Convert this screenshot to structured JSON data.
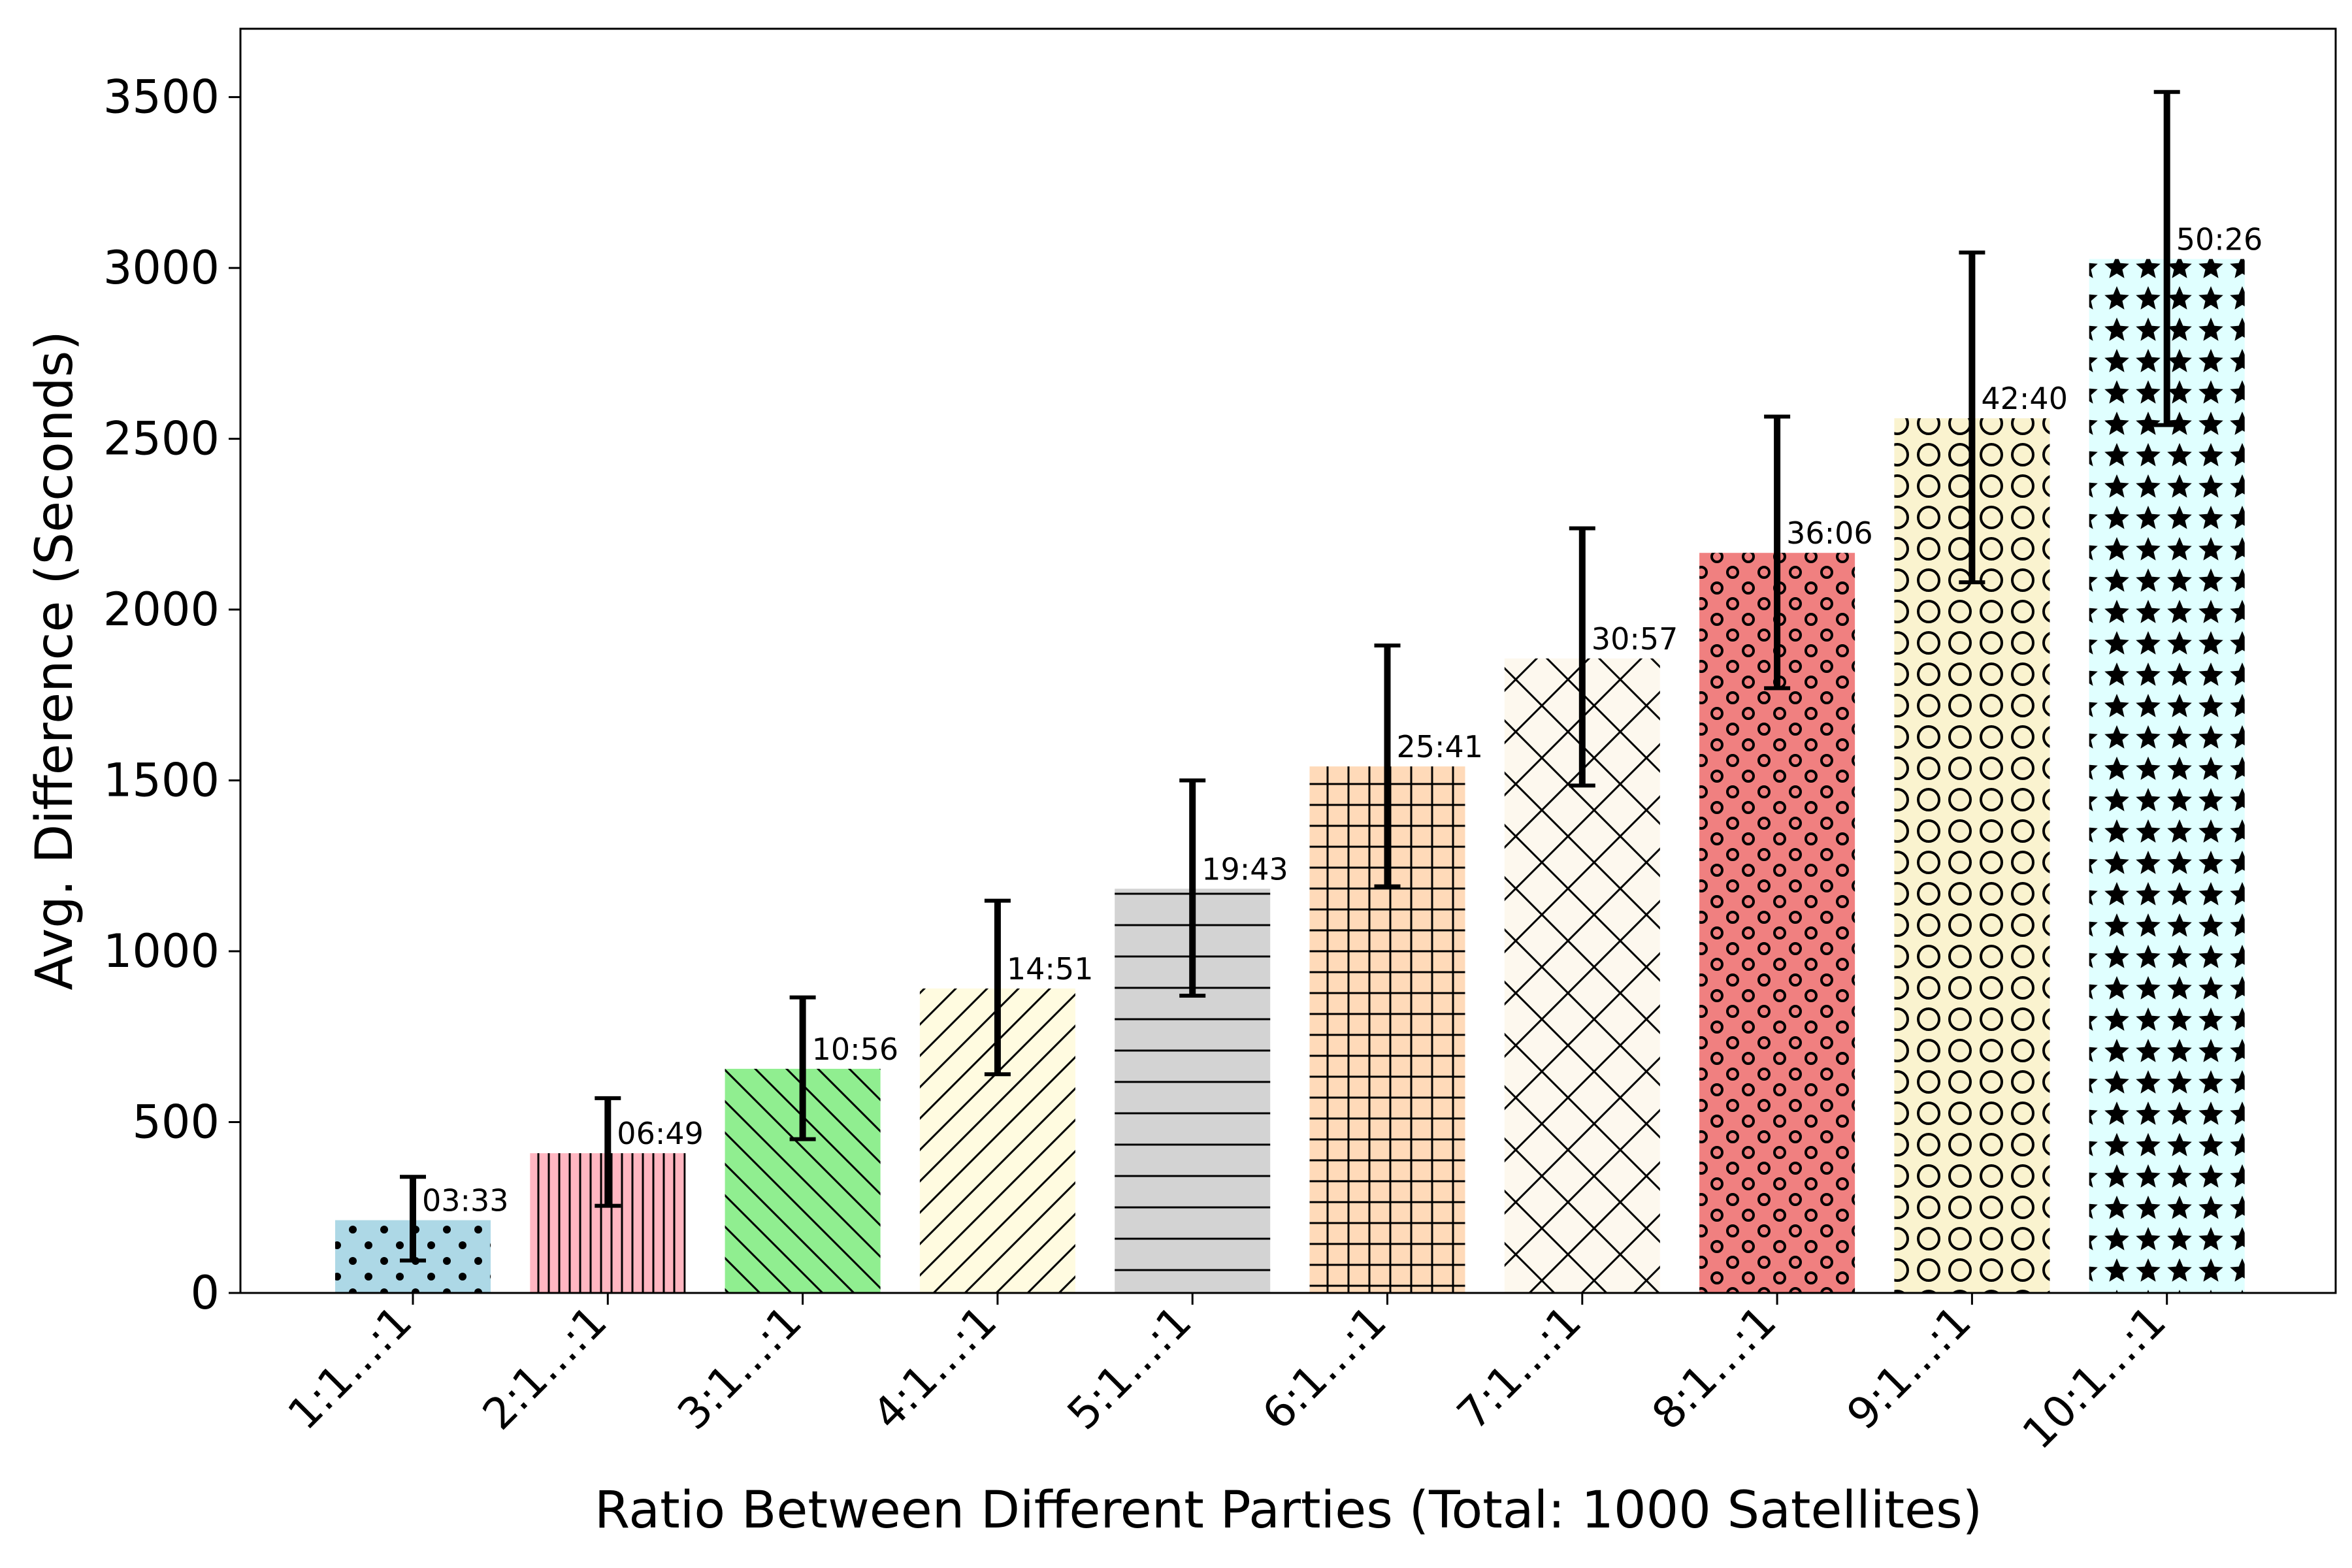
{
  "chart_data": {
    "type": "bar",
    "xlabel": "Ratio Between Different Parties (Total: 1000 Satellites)",
    "ylabel": "Avg. Difference (Seconds)",
    "ylim": [
      0,
      3700
    ],
    "yticks": [
      0,
      500,
      1000,
      1500,
      2000,
      2500,
      3000,
      3500
    ],
    "grid": false,
    "categories": [
      "1:1...:1",
      "2:1...:1",
      "3:1...:1",
      "4:1...:1",
      "5:1...:1",
      "6:1...:1",
      "7:1...:1",
      "8:1...:1",
      "9:1...:1",
      "10:1...:1"
    ],
    "values": [
      213,
      409,
      656,
      891,
      1183,
      1541,
      1857,
      2166,
      2560,
      3026
    ],
    "error_low": [
      95,
      255,
      450,
      640,
      870,
      1190,
      1485,
      1770,
      2080,
      2540
    ],
    "error_high": [
      340,
      570,
      865,
      1148,
      1500,
      1895,
      2238,
      2565,
      3045,
      3515
    ],
    "data_labels": [
      "03:33",
      "06:49",
      "10:56",
      "14:51",
      "19:43",
      "25:41",
      "30:57",
      "36:06",
      "42:40",
      "50:26"
    ],
    "colors": [
      "#add8e6",
      "#ffb6c1",
      "#90ee90",
      "#fffbe0",
      "#d3d3d3",
      "#ffdab9",
      "#fdf8ee",
      "#f08080",
      "#faf3cf",
      "#e0ffff"
    ],
    "hatches": [
      "dots",
      "vertical",
      "backslash",
      "slash",
      "horizontal",
      "grid",
      "cross",
      "small-circles",
      "large-circles",
      "stars"
    ]
  }
}
